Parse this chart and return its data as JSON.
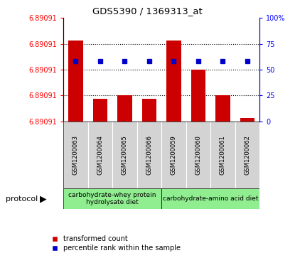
{
  "title": "GDS5390 / 1369313_at",
  "samples": [
    "GSM1200063",
    "GSM1200064",
    "GSM1200065",
    "GSM1200066",
    "GSM1200059",
    "GSM1200060",
    "GSM1200061",
    "GSM1200062"
  ],
  "red_heights_pct": [
    78,
    22,
    25,
    22,
    78,
    50,
    25,
    3
  ],
  "blue_pct": [
    58,
    58,
    58,
    58,
    58,
    58,
    58,
    58
  ],
  "ymin": 6.890905,
  "ymax": 6.890915,
  "yticks_pct": [
    0,
    25,
    50,
    75,
    100
  ],
  "ytick_label": "6.89091",
  "group1_label": "carbohydrate-whey protein\nhydrolysate diet",
  "group2_label": "carbohydrate-amino acid diet",
  "protocol_label": "protocol",
  "legend_red": "transformed count",
  "legend_blue": "percentile rank within the sample",
  "bar_color": "#cc0000",
  "dot_color": "#0000cc",
  "group_color": "#90ee90",
  "sample_box_color": "#d3d3d3",
  "right_tick_labels": [
    "0",
    "25",
    "50",
    "75",
    "100%"
  ]
}
